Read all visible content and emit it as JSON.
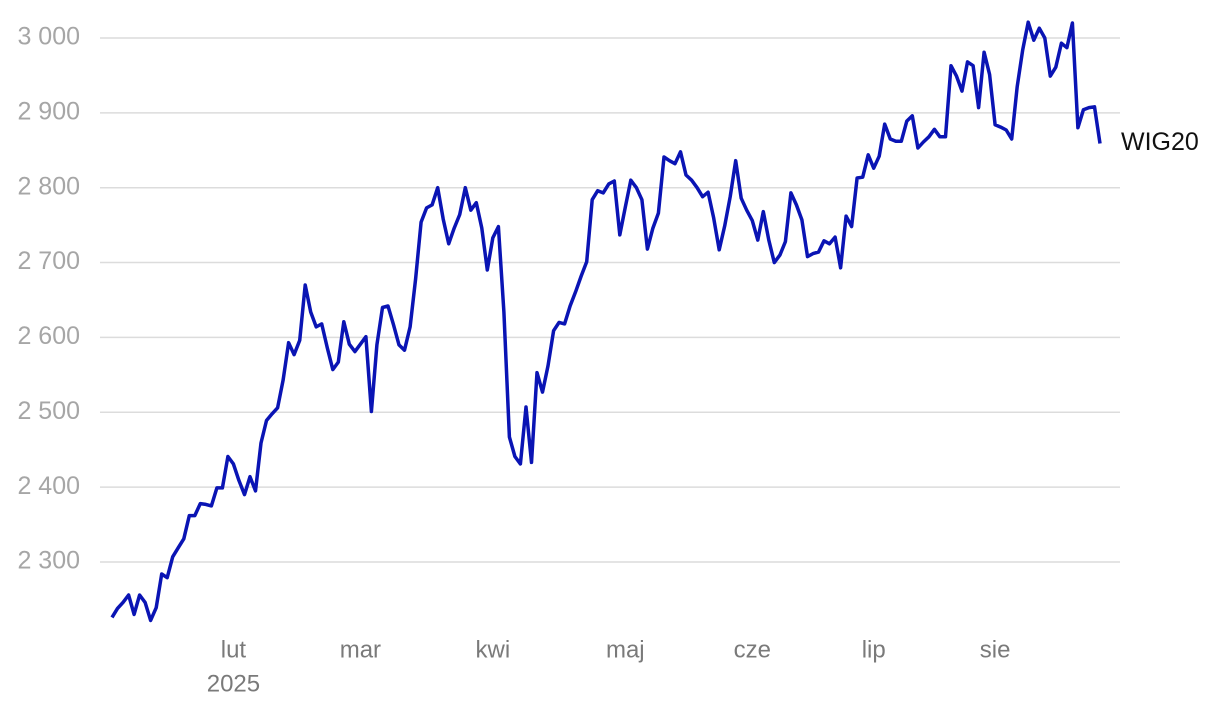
{
  "chart_data": {
    "type": "line",
    "categories": [
      null,
      null,
      null,
      null,
      null,
      null,
      null,
      null,
      null,
      null,
      null,
      null,
      null,
      null,
      null,
      null,
      null,
      null,
      null,
      null,
      null,
      null,
      "lut",
      null,
      null,
      null,
      null,
      null,
      null,
      null,
      null,
      null,
      null,
      null,
      null,
      null,
      null,
      null,
      null,
      null,
      null,
      null,
      null,
      null,
      null,
      "mar",
      null,
      null,
      null,
      null,
      null,
      null,
      null,
      null,
      null,
      null,
      null,
      null,
      null,
      null,
      null,
      null,
      null,
      null,
      null,
      null,
      null,
      null,
      null,
      "kwi",
      null,
      null,
      null,
      null,
      null,
      null,
      null,
      null,
      null,
      null,
      null,
      null,
      null,
      null,
      null,
      null,
      null,
      null,
      null,
      null,
      null,
      null,
      null,
      "maj",
      null,
      null,
      null,
      null,
      null,
      null,
      null,
      null,
      null,
      null,
      null,
      null,
      null,
      null,
      null,
      null,
      null,
      null,
      null,
      null,
      null,
      null,
      "cze",
      null,
      null,
      null,
      null,
      null,
      null,
      null,
      null,
      null,
      null,
      null,
      null,
      null,
      null,
      null,
      null,
      null,
      null,
      null,
      null,
      null,
      "lip",
      null,
      null,
      null,
      null,
      null,
      null,
      null,
      null,
      null,
      null,
      null,
      null,
      null,
      null,
      null,
      null,
      null,
      null,
      null,
      null,
      null,
      "sie",
      null,
      null,
      null,
      null,
      null,
      null,
      null,
      null,
      null,
      null,
      null,
      null,
      null,
      null,
      null,
      null,
      null,
      null,
      null
    ],
    "x_year_label": "2025",
    "series": [
      {
        "name": "WIG20",
        "color": "#0a14b4",
        "values": [
          2226,
          2238,
          2246,
          2256,
          2230,
          2256,
          2246,
          2222,
          2239,
          2284,
          2279,
          2307,
          2319,
          2331,
          2362,
          2362,
          2378,
          2377,
          2375,
          2399,
          2399,
          2441,
          2431,
          2409,
          2390,
          2414,
          2395,
          2459,
          2489,
          2498,
          2506,
          2543,
          2593,
          2577,
          2596,
          2670,
          2634,
          2614,
          2618,
          2586,
          2557,
          2567,
          2621,
          2591,
          2581,
          2591,
          2601,
          2501,
          2590,
          2640,
          2642,
          2617,
          2590,
          2583,
          2614,
          2678,
          2754,
          2773,
          2777,
          2800,
          2758,
          2725,
          2746,
          2764,
          2800,
          2770,
          2780,
          2746,
          2690,
          2733,
          2748,
          2634,
          2467,
          2441,
          2431,
          2507,
          2433,
          2553,
          2527,
          2562,
          2609,
          2620,
          2618,
          2642,
          2661,
          2682,
          2701,
          2784,
          2796,
          2793,
          2805,
          2809,
          2737,
          2774,
          2810,
          2800,
          2784,
          2718,
          2746,
          2766,
          2841,
          2836,
          2832,
          2848,
          2817,
          2810,
          2800,
          2788,
          2794,
          2760,
          2717,
          2749,
          2788,
          2836,
          2786,
          2770,
          2756,
          2730,
          2768,
          2730,
          2700,
          2710,
          2728,
          2793,
          2777,
          2757,
          2708,
          2712,
          2714,
          2729,
          2725,
          2734,
          2693,
          2762,
          2748,
          2813,
          2814,
          2844,
          2826,
          2842,
          2885,
          2865,
          2862,
          2862,
          2889,
          2896,
          2853,
          2861,
          2868,
          2878,
          2868,
          2868,
          2963,
          2949,
          2929,
          2968,
          2963,
          2907,
          2981,
          2951,
          2884,
          2881,
          2877,
          2865,
          2935,
          2984,
          3021,
          2997,
          3013,
          3000,
          2949,
          2961,
          2993,
          2987,
          3020,
          2880,
          2904,
          2907,
          2908,
          2859
        ]
      }
    ],
    "ylim": [
      2210,
      3030
    ],
    "yticks": [
      {
        "value": 2300,
        "label": "2 300"
      },
      {
        "value": 2400,
        "label": "2 400"
      },
      {
        "value": 2500,
        "label": "2 500"
      },
      {
        "value": 2600,
        "label": "2 600"
      },
      {
        "value": 2700,
        "label": "2 700"
      },
      {
        "value": 2800,
        "label": "2 800"
      },
      {
        "value": 2900,
        "label": "2 900"
      },
      {
        "value": 3000,
        "label": "3 000"
      }
    ],
    "grid": true
  }
}
